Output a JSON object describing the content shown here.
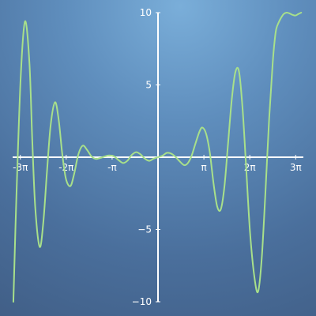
{
  "chart_data": {
    "type": "line",
    "title": "",
    "xlabel": "",
    "ylabel": "",
    "xlim": [
      -9.95,
      9.95
    ],
    "ylim": [
      -10,
      10
    ],
    "grid": false,
    "legend": "none",
    "colors": {
      "line": "#a8e08a",
      "axes": "#ffffff",
      "text": "#ffffff"
    },
    "x_ticks": [
      {
        "value": -9.42478,
        "label": "-3π"
      },
      {
        "value": -6.28319,
        "label": "-2π"
      },
      {
        "value": -3.14159,
        "label": "-π"
      },
      {
        "value": 3.14159,
        "label": "π"
      },
      {
        "value": 6.28319,
        "label": "2π"
      },
      {
        "value": 9.42478,
        "label": "3π"
      }
    ],
    "y_ticks": [
      {
        "value": 10,
        "label": "10"
      },
      {
        "value": 5,
        "label": "5"
      },
      {
        "value": -5,
        "label": "−5"
      },
      {
        "value": -10,
        "label": "−10"
      }
    ],
    "series": [
      {
        "name": "",
        "points": [
          [
            -9.9,
            -10.0
          ],
          [
            -9.7,
            -3.0
          ],
          [
            -9.4,
            5.5
          ],
          [
            -9.1,
            9.4
          ],
          [
            -8.8,
            6.5
          ],
          [
            -8.6,
            1.0
          ],
          [
            -8.4,
            -3.5
          ],
          [
            -8.1,
            -6.2
          ],
          [
            -7.85,
            -4.5
          ],
          [
            -7.6,
            -1.0
          ],
          [
            -7.35,
            2.2
          ],
          [
            -7.05,
            3.8
          ],
          [
            -6.8,
            2.6
          ],
          [
            -6.55,
            0.2
          ],
          [
            -6.3,
            -1.5
          ],
          [
            -6.0,
            -2.0
          ],
          [
            -5.75,
            -1.2
          ],
          [
            -5.45,
            0.2
          ],
          [
            -5.15,
            0.8
          ],
          [
            -4.85,
            0.5
          ],
          [
            -4.55,
            0.05
          ],
          [
            -4.25,
            -0.12
          ],
          [
            -3.95,
            -0.05
          ],
          [
            -3.65,
            0.05
          ],
          [
            -3.35,
            0.12
          ],
          [
            -3.0,
            0.05
          ],
          [
            -2.7,
            -0.2
          ],
          [
            -2.4,
            -0.4
          ],
          [
            -2.1,
            -0.25
          ],
          [
            -1.8,
            0.15
          ],
          [
            -1.5,
            0.35
          ],
          [
            -1.2,
            0.2
          ],
          [
            -0.9,
            -0.1
          ],
          [
            -0.6,
            -0.25
          ],
          [
            -0.3,
            -0.1
          ],
          [
            0.0,
            0.0
          ],
          [
            0.3,
            0.1
          ],
          [
            0.6,
            0.3
          ],
          [
            0.9,
            0.25
          ],
          [
            1.2,
            0.02
          ],
          [
            1.5,
            -0.3
          ],
          [
            1.8,
            -0.55
          ],
          [
            2.05,
            -0.4
          ],
          [
            2.3,
            0.1
          ],
          [
            2.55,
            0.9
          ],
          [
            2.85,
            1.8
          ],
          [
            3.05,
            2.05
          ],
          [
            3.3,
            1.6
          ],
          [
            3.55,
            0.3
          ],
          [
            3.8,
            -1.8
          ],
          [
            4.05,
            -3.4
          ],
          [
            4.3,
            -3.6
          ],
          [
            4.55,
            -2.0
          ],
          [
            4.8,
            1.0
          ],
          [
            5.05,
            4.0
          ],
          [
            5.3,
            5.9
          ],
          [
            5.55,
            5.9
          ],
          [
            5.8,
            3.2
          ],
          [
            6.05,
            -1.0
          ],
          [
            6.3,
            -5.2
          ],
          [
            6.6,
            -8.3
          ],
          [
            6.85,
            -9.3
          ],
          [
            7.1,
            -7.0
          ],
          [
            7.35,
            -2.5
          ],
          [
            7.6,
            2.5
          ],
          [
            7.85,
            6.5
          ],
          [
            8.0,
            8.2
          ],
          [
            8.1,
            8.9
          ],
          [
            8.25,
            9.3
          ],
          [
            8.4,
            9.6
          ],
          [
            8.6,
            9.9
          ],
          [
            8.8,
            10.0
          ],
          [
            9.0,
            9.95
          ],
          [
            9.2,
            9.85
          ],
          [
            9.4,
            9.8
          ],
          [
            9.6,
            9.9
          ],
          [
            9.8,
            10.0
          ]
        ]
      }
    ]
  }
}
